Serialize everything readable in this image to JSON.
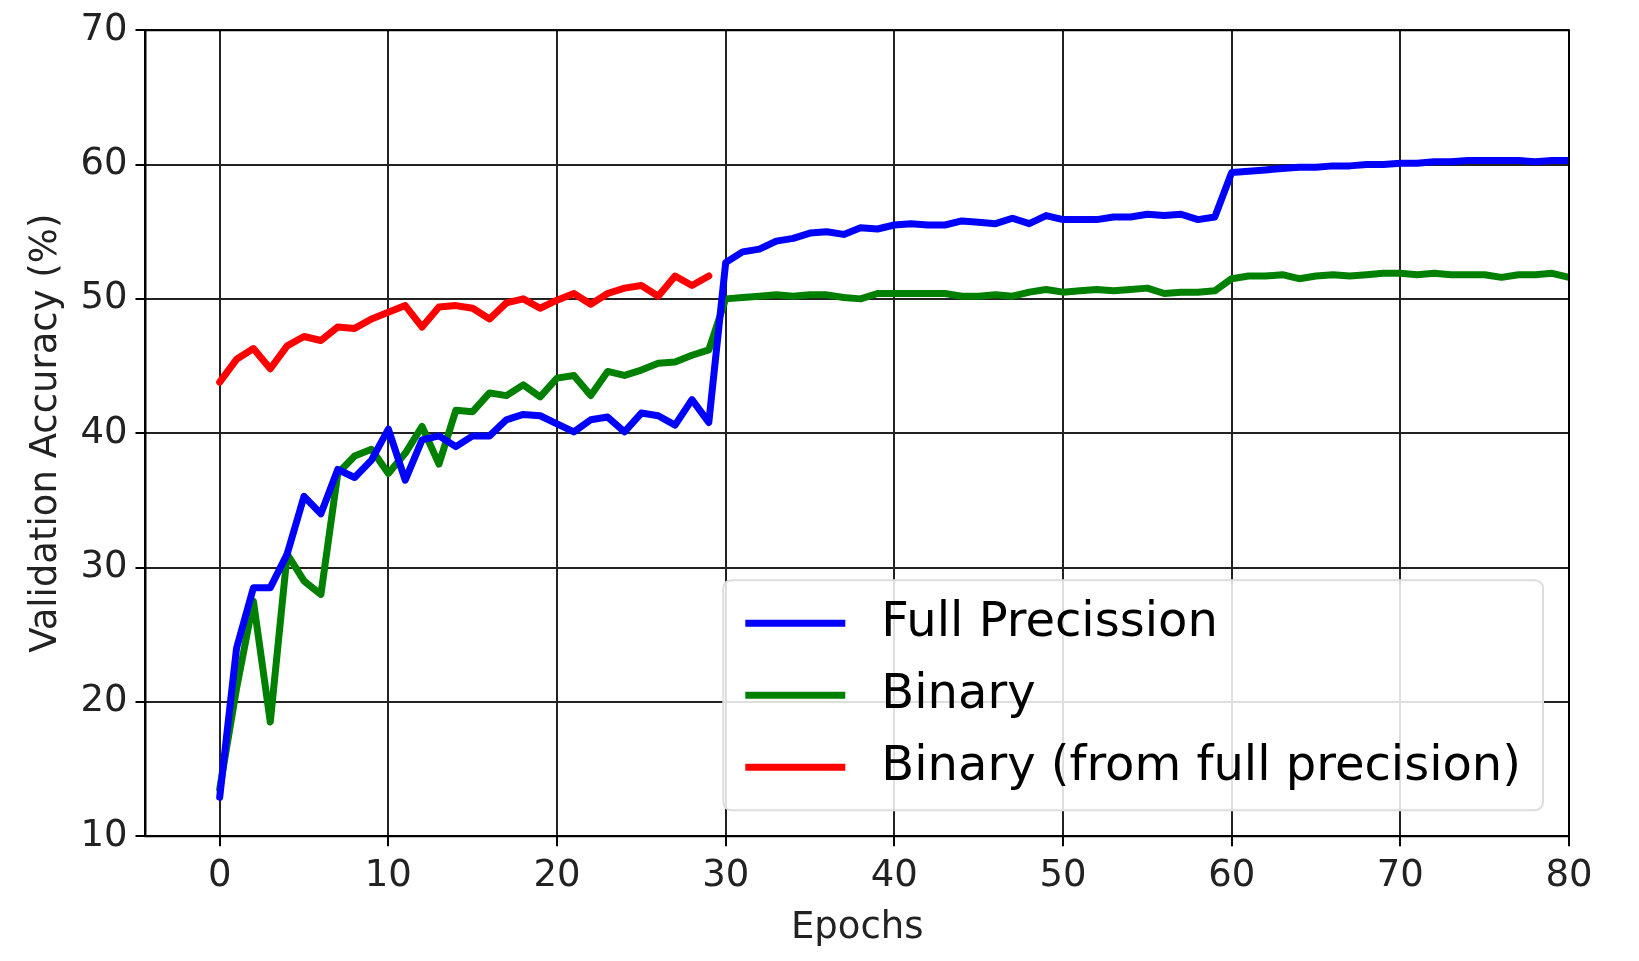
{
  "chart_data": {
    "type": "line",
    "xlabel": "Epochs",
    "ylabel": "Validation Accuracy (%)",
    "xlim": [
      -4.4,
      80
    ],
    "xticks": [
      0,
      10,
      20,
      30,
      40,
      50,
      60,
      70,
      80
    ],
    "ylim": [
      10,
      70
    ],
    "yticks": [
      10,
      20,
      30,
      40,
      50,
      60,
      70
    ],
    "grid": true,
    "legend": "bottom right",
    "marker": "none",
    "line_style": "solid",
    "series": [
      {
        "name": "Full Precission",
        "color": "#0000ff",
        "x": [
          0,
          1,
          2,
          3,
          4,
          5,
          6,
          7,
          8,
          9,
          10,
          11,
          12,
          13,
          14,
          15,
          16,
          17,
          18,
          19,
          20,
          21,
          22,
          23,
          24,
          25,
          26,
          27,
          28,
          29,
          30,
          31,
          32,
          33,
          34,
          35,
          36,
          37,
          38,
          39,
          40,
          41,
          42,
          43,
          44,
          45,
          46,
          47,
          48,
          49,
          50,
          51,
          52,
          53,
          54,
          55,
          56,
          57,
          58,
          59,
          60,
          61,
          62,
          63,
          64,
          65,
          66,
          67,
          68,
          69,
          70,
          71,
          72,
          73,
          74,
          75,
          76,
          77,
          78,
          79,
          80
        ],
        "values": [
          12.9,
          24,
          28.5,
          28.5,
          31,
          35.3,
          34,
          37.3,
          36.7,
          38,
          40.3,
          36.5,
          39.5,
          39.8,
          39,
          39.8,
          39.8,
          41,
          41.4,
          41.3,
          40.7,
          40.1,
          41,
          41.2,
          40.1,
          41.5,
          41.3,
          40.6,
          42.5,
          40.8,
          52.7,
          53.5,
          53.7,
          54.3,
          54.5,
          54.9,
          55,
          54.8,
          55.3,
          55.2,
          55.5,
          55.6,
          55.5,
          55.5,
          55.8,
          55.7,
          55.6,
          56,
          55.6,
          56.2,
          55.9,
          55.9,
          55.9,
          56.1,
          56.1,
          56.3,
          56.2,
          56.3,
          55.9,
          56.1,
          59.4,
          59.5,
          59.6,
          59.7,
          59.8,
          59.8,
          59.9,
          59.9,
          60,
          60,
          60.1,
          60.1,
          60.2,
          60.2,
          60.3,
          60.3,
          60.3,
          60.3,
          60.2,
          60.3,
          60.3
        ]
      },
      {
        "name": "Binary",
        "color": "#008000",
        "x": [
          0,
          1,
          2,
          3,
          4,
          5,
          6,
          7,
          8,
          9,
          10,
          11,
          12,
          13,
          14,
          15,
          16,
          17,
          18,
          19,
          20,
          21,
          22,
          23,
          24,
          25,
          26,
          27,
          28,
          29,
          30,
          31,
          32,
          33,
          34,
          35,
          36,
          37,
          38,
          39,
          40,
          41,
          42,
          43,
          44,
          45,
          46,
          47,
          48,
          49,
          50,
          51,
          52,
          53,
          54,
          55,
          56,
          57,
          58,
          59,
          60,
          61,
          62,
          63,
          64,
          65,
          66,
          67,
          68,
          69,
          70,
          71,
          72,
          73,
          74,
          75,
          76,
          77,
          78,
          79,
          80
        ],
        "values": [
          13.5,
          21,
          27.5,
          18.5,
          31,
          29,
          28,
          37,
          38.3,
          38.8,
          37,
          38.5,
          40.5,
          37.7,
          41.7,
          41.6,
          43,
          42.8,
          43.6,
          42.7,
          44.1,
          44.3,
          42.8,
          44.6,
          44.3,
          44.7,
          45.2,
          45.3,
          45.8,
          46.2,
          50,
          50.1,
          50.2,
          50.3,
          50.2,
          50.3,
          50.3,
          50.1,
          50,
          50.4,
          50.4,
          50.4,
          50.4,
          50.4,
          50.2,
          50.2,
          50.3,
          50.2,
          50.5,
          50.7,
          50.5,
          50.6,
          50.7,
          50.6,
          50.7,
          50.8,
          50.4,
          50.5,
          50.5,
          50.6,
          51.5,
          51.7,
          51.7,
          51.8,
          51.5,
          51.7,
          51.8,
          51.7,
          51.8,
          51.9,
          51.9,
          51.8,
          51.9,
          51.8,
          51.8,
          51.8,
          51.6,
          51.8,
          51.8,
          51.9,
          51.6
        ]
      },
      {
        "name": "Binary (from full precision)",
        "color": "#ff0000",
        "x": [
          0,
          1,
          2,
          3,
          4,
          5,
          6,
          7,
          8,
          9,
          10,
          11,
          12,
          13,
          14,
          15,
          16,
          17,
          18,
          19,
          20,
          21,
          22,
          23,
          24,
          25,
          26,
          27,
          28,
          29
        ],
        "values": [
          43.8,
          45.5,
          46.3,
          44.8,
          46.5,
          47.2,
          46.9,
          47.9,
          47.8,
          48.5,
          49,
          49.5,
          47.9,
          49.4,
          49.5,
          49.3,
          48.5,
          49.7,
          50,
          49.3,
          49.9,
          50.4,
          49.6,
          50.4,
          50.8,
          51,
          50.2,
          51.7,
          51,
          51.7
        ]
      }
    ]
  }
}
